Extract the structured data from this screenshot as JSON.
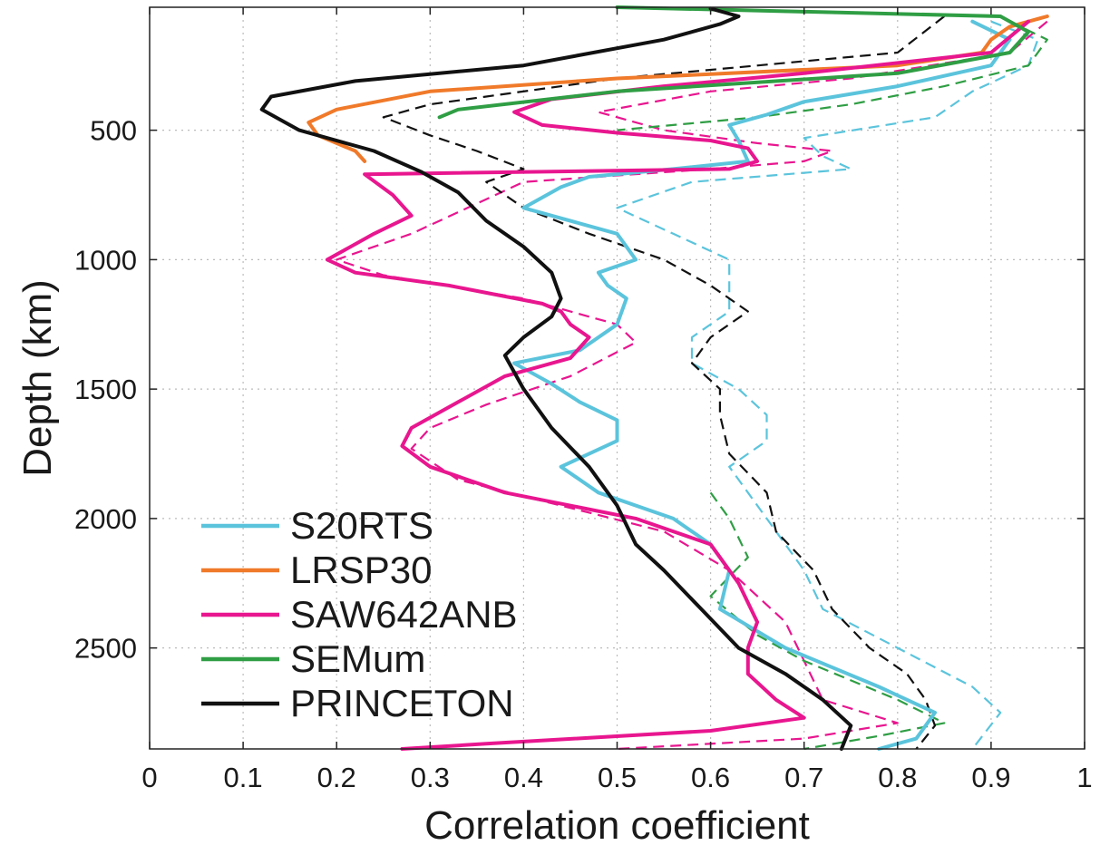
{
  "chart_data": {
    "type": "line",
    "xlabel": "Correlation coefficient",
    "ylabel": "Depth (km)",
    "xlim": [
      0,
      1
    ],
    "ylim": [
      2890,
      25
    ],
    "y_inverted": true,
    "grid": true,
    "legend_position": "bottom-left",
    "x_ticks": [
      "0",
      "0.1",
      "0.2",
      "0.3",
      "0.4",
      "0.5",
      "0.6",
      "0.7",
      "0.8",
      "0.9",
      "1"
    ],
    "y_ticks": [
      "500",
      "1000",
      "1500",
      "2000",
      "2500"
    ],
    "series": [
      {
        "name": "S20RTS",
        "color": "#5bc4dc",
        "solid": [
          [
            0.88,
            80
          ],
          [
            0.92,
            150
          ],
          [
            0.9,
            250
          ],
          [
            0.8,
            330
          ],
          [
            0.7,
            390
          ],
          [
            0.66,
            440
          ],
          [
            0.62,
            480
          ],
          [
            0.63,
            540
          ],
          [
            0.64,
            620
          ],
          [
            0.56,
            650
          ],
          [
            0.47,
            680
          ],
          [
            0.44,
            720
          ],
          [
            0.4,
            800
          ],
          [
            0.46,
            860
          ],
          [
            0.5,
            900
          ],
          [
            0.51,
            950
          ],
          [
            0.52,
            1000
          ],
          [
            0.48,
            1050
          ],
          [
            0.49,
            1100
          ],
          [
            0.51,
            1150
          ],
          [
            0.5,
            1250
          ],
          [
            0.46,
            1350
          ],
          [
            0.39,
            1400
          ],
          [
            0.43,
            1480
          ],
          [
            0.46,
            1550
          ],
          [
            0.5,
            1620
          ],
          [
            0.5,
            1700
          ],
          [
            0.44,
            1800
          ],
          [
            0.48,
            1900
          ],
          [
            0.56,
            2000
          ],
          [
            0.6,
            2100
          ],
          [
            0.62,
            2200
          ],
          [
            0.61,
            2350
          ],
          [
            0.68,
            2500
          ],
          [
            0.78,
            2650
          ],
          [
            0.84,
            2750
          ],
          [
            0.82,
            2850
          ],
          [
            0.78,
            2890
          ]
        ],
        "dashed": [
          [
            0.9,
            80
          ],
          [
            0.95,
            150
          ],
          [
            0.94,
            250
          ],
          [
            0.88,
            350
          ],
          [
            0.84,
            450
          ],
          [
            0.7,
            530
          ],
          [
            0.72,
            600
          ],
          [
            0.75,
            650
          ],
          [
            0.58,
            700
          ],
          [
            0.5,
            800
          ],
          [
            0.56,
            900
          ],
          [
            0.62,
            1000
          ],
          [
            0.62,
            1100
          ],
          [
            0.62,
            1200
          ],
          [
            0.58,
            1300
          ],
          [
            0.58,
            1400
          ],
          [
            0.63,
            1500
          ],
          [
            0.66,
            1600
          ],
          [
            0.66,
            1700
          ],
          [
            0.62,
            1800
          ],
          [
            0.64,
            1900
          ],
          [
            0.66,
            2000
          ],
          [
            0.7,
            2200
          ],
          [
            0.72,
            2350
          ],
          [
            0.8,
            2500
          ],
          [
            0.88,
            2650
          ],
          [
            0.91,
            2750
          ],
          [
            0.88,
            2890
          ]
        ]
      },
      {
        "name": "LRSP30",
        "color": "#f07a2a",
        "solid": [
          [
            0.96,
            60
          ],
          [
            0.92,
            100
          ],
          [
            0.9,
            150
          ],
          [
            0.89,
            200
          ],
          [
            0.8,
            250
          ],
          [
            0.5,
            300
          ],
          [
            0.3,
            350
          ],
          [
            0.2,
            420
          ],
          [
            0.17,
            470
          ],
          [
            0.18,
            520
          ],
          [
            0.22,
            580
          ],
          [
            0.23,
            620
          ]
        ],
        "dashed": []
      },
      {
        "name": "SAW642ANB",
        "color": "#e8168f",
        "solid": [
          [
            0.94,
            80
          ],
          [
            0.9,
            200
          ],
          [
            0.7,
            280
          ],
          [
            0.55,
            330
          ],
          [
            0.43,
            380
          ],
          [
            0.39,
            430
          ],
          [
            0.42,
            480
          ],
          [
            0.5,
            510
          ],
          [
            0.6,
            540
          ],
          [
            0.64,
            570
          ],
          [
            0.65,
            620
          ],
          [
            0.62,
            650
          ],
          [
            0.23,
            670
          ],
          [
            0.26,
            750
          ],
          [
            0.28,
            830
          ],
          [
            0.24,
            900
          ],
          [
            0.19,
            1000
          ],
          [
            0.22,
            1050
          ],
          [
            0.32,
            1100
          ],
          [
            0.42,
            1170
          ],
          [
            0.44,
            1200
          ],
          [
            0.45,
            1250
          ],
          [
            0.47,
            1300
          ],
          [
            0.45,
            1380
          ],
          [
            0.38,
            1450
          ],
          [
            0.33,
            1550
          ],
          [
            0.28,
            1650
          ],
          [
            0.27,
            1720
          ],
          [
            0.3,
            1800
          ],
          [
            0.38,
            1900
          ],
          [
            0.52,
            2000
          ],
          [
            0.6,
            2100
          ],
          [
            0.63,
            2250
          ],
          [
            0.65,
            2400
          ],
          [
            0.64,
            2500
          ],
          [
            0.64,
            2600
          ],
          [
            0.67,
            2700
          ],
          [
            0.7,
            2770
          ],
          [
            0.6,
            2820
          ],
          [
            0.36,
            2870
          ],
          [
            0.27,
            2890
          ]
        ],
        "dashed": [
          [
            0.96,
            80
          ],
          [
            0.92,
            200
          ],
          [
            0.75,
            300
          ],
          [
            0.6,
            350
          ],
          [
            0.48,
            430
          ],
          [
            0.55,
            500
          ],
          [
            0.65,
            550
          ],
          [
            0.73,
            580
          ],
          [
            0.7,
            620
          ],
          [
            0.6,
            650
          ],
          [
            0.4,
            700
          ],
          [
            0.34,
            800
          ],
          [
            0.28,
            900
          ],
          [
            0.2,
            1000
          ],
          [
            0.25,
            1060
          ],
          [
            0.4,
            1150
          ],
          [
            0.5,
            1250
          ],
          [
            0.52,
            1320
          ],
          [
            0.45,
            1450
          ],
          [
            0.36,
            1560
          ],
          [
            0.3,
            1650
          ],
          [
            0.28,
            1730
          ],
          [
            0.33,
            1850
          ],
          [
            0.44,
            1950
          ],
          [
            0.55,
            2050
          ],
          [
            0.62,
            2200
          ],
          [
            0.68,
            2400
          ],
          [
            0.7,
            2550
          ],
          [
            0.72,
            2700
          ],
          [
            0.8,
            2790
          ],
          [
            0.7,
            2850
          ],
          [
            0.5,
            2890
          ]
        ]
      },
      {
        "name": "SEMum",
        "color": "#2f9e44",
        "solid": [
          [
            0.5,
            25
          ],
          [
            0.91,
            60
          ],
          [
            0.94,
            120
          ],
          [
            0.92,
            200
          ],
          [
            0.8,
            280
          ],
          [
            0.5,
            350
          ],
          [
            0.33,
            420
          ],
          [
            0.31,
            450
          ]
        ],
        "dashed": [
          [
            0.92,
            80
          ],
          [
            0.96,
            150
          ],
          [
            0.94,
            250
          ],
          [
            0.85,
            330
          ],
          [
            0.75,
            400
          ],
          [
            0.65,
            450
          ],
          [
            0.5,
            500
          ]
        ],
        "dashed_lower": [
          [
            0.6,
            1900
          ],
          [
            0.62,
            2000
          ],
          [
            0.64,
            2150
          ],
          [
            0.6,
            2300
          ],
          [
            0.65,
            2450
          ],
          [
            0.7,
            2550
          ],
          [
            0.8,
            2700
          ],
          [
            0.85,
            2790
          ],
          [
            0.78,
            2840
          ],
          [
            0.7,
            2890
          ]
        ]
      },
      {
        "name": "PRINCETON",
        "color": "#111111",
        "solid": [
          [
            0.6,
            30
          ],
          [
            0.63,
            60
          ],
          [
            0.61,
            90
          ],
          [
            0.55,
            150
          ],
          [
            0.4,
            250
          ],
          [
            0.22,
            310
          ],
          [
            0.13,
            370
          ],
          [
            0.12,
            420
          ],
          [
            0.16,
            500
          ],
          [
            0.24,
            580
          ],
          [
            0.29,
            660
          ],
          [
            0.33,
            740
          ],
          [
            0.36,
            850
          ],
          [
            0.4,
            950
          ],
          [
            0.43,
            1050
          ],
          [
            0.44,
            1150
          ],
          [
            0.43,
            1220
          ],
          [
            0.4,
            1300
          ],
          [
            0.38,
            1370
          ],
          [
            0.4,
            1500
          ],
          [
            0.43,
            1650
          ],
          [
            0.47,
            1800
          ],
          [
            0.5,
            1950
          ],
          [
            0.52,
            2100
          ],
          [
            0.55,
            2200
          ],
          [
            0.59,
            2350
          ],
          [
            0.63,
            2500
          ],
          [
            0.68,
            2600
          ],
          [
            0.72,
            2700
          ],
          [
            0.75,
            2800
          ],
          [
            0.74,
            2890
          ]
        ],
        "dashed": [
          [
            0.85,
            60
          ],
          [
            0.8,
            200
          ],
          [
            0.5,
            300
          ],
          [
            0.3,
            400
          ],
          [
            0.25,
            450
          ],
          [
            0.3,
            520
          ],
          [
            0.35,
            580
          ],
          [
            0.4,
            650
          ],
          [
            0.36,
            700
          ],
          [
            0.4,
            800
          ],
          [
            0.47,
            900
          ],
          [
            0.55,
            1000
          ],
          [
            0.6,
            1100
          ],
          [
            0.64,
            1200
          ],
          [
            0.6,
            1300
          ],
          [
            0.58,
            1400
          ],
          [
            0.61,
            1500
          ],
          [
            0.61,
            1600
          ],
          [
            0.62,
            1750
          ],
          [
            0.66,
            1900
          ],
          [
            0.67,
            2050
          ],
          [
            0.71,
            2200
          ],
          [
            0.73,
            2350
          ],
          [
            0.77,
            2500
          ],
          [
            0.81,
            2600
          ],
          [
            0.83,
            2700
          ],
          [
            0.84,
            2800
          ],
          [
            0.82,
            2890
          ]
        ]
      }
    ]
  }
}
